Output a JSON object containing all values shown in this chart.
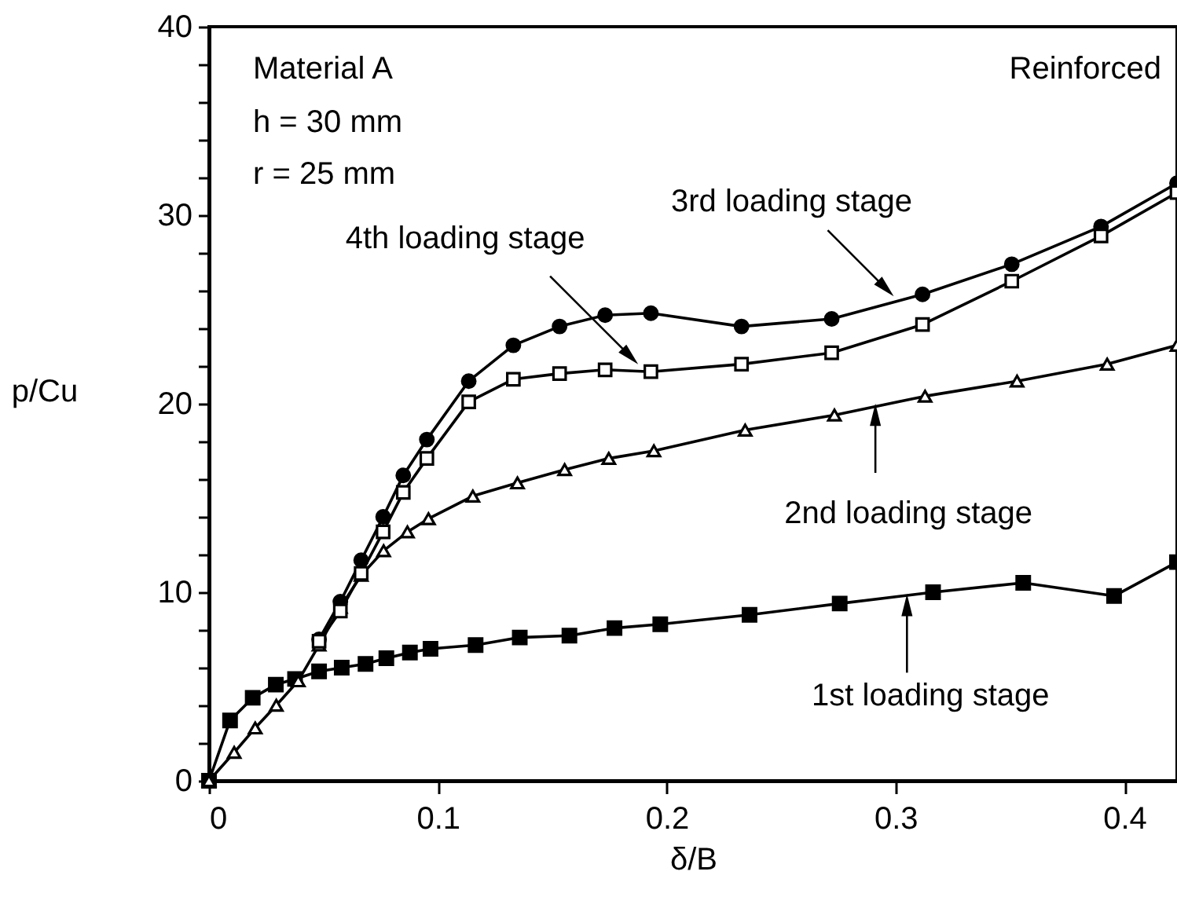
{
  "chart_data": {
    "type": "line",
    "xlabel": "δ/B",
    "ylabel": "p/Cu",
    "xlim": [
      0,
      0.423
    ],
    "ylim": [
      0,
      40
    ],
    "xticks": [
      {
        "value": 0,
        "label": "0"
      },
      {
        "value": 0.1,
        "label": "0.1"
      },
      {
        "value": 0.2,
        "label": "0.2"
      },
      {
        "value": 0.3,
        "label": "0.3"
      },
      {
        "value": 0.4,
        "label": "0.4"
      }
    ],
    "yticks": [
      0,
      {
        "value": 2,
        "label": null
      },
      {
        "value": 4,
        "label": null
      },
      {
        "value": 6,
        "label": null
      },
      {
        "value": 8,
        "label": null
      },
      10,
      {
        "value": 12,
        "label": null
      },
      {
        "value": 14,
        "label": null
      },
      {
        "value": 16,
        "label": null
      },
      {
        "value": 18,
        "label": null
      },
      20,
      {
        "value": 22,
        "label": null
      },
      {
        "value": 24,
        "label": null
      },
      {
        "value": 26,
        "label": null
      },
      {
        "value": 28,
        "label": null
      },
      30,
      {
        "value": 32,
        "label": null
      },
      {
        "value": 34,
        "label": null
      },
      {
        "value": 36,
        "label": null
      },
      {
        "value": 38,
        "label": null
      },
      40
    ],
    "grid": false,
    "line_style": "solid",
    "series": [
      {
        "color": "#000000",
        "marker": "square",
        "x": [
          0,
          0.0092,
          0.0191,
          0.0292,
          0.0376,
          0.0481,
          0.058,
          0.0684,
          0.0775,
          0.0878,
          0.0968,
          0.1165,
          0.1358,
          0.1575,
          0.1772,
          0.1972,
          0.2362,
          0.2756,
          0.3164,
          0.3558,
          0.3955,
          0.423
        ],
        "values": [
          0,
          3.2,
          4.4,
          5.1,
          5.4,
          5.8,
          6.0,
          6.2,
          6.5,
          6.8,
          7.0,
          7.2,
          7.6,
          7.7,
          8.1,
          8.3,
          8.8,
          9.4,
          10.0,
          10.5,
          9.8,
          11.6
        ]
      },
      {
        "color": "#000000",
        "marker": "triangle",
        "x": [
          0,
          0.011,
          0.0202,
          0.0294,
          0.039,
          0.0481,
          0.0574,
          0.0665,
          0.0763,
          0.0867,
          0.0959,
          0.1153,
          0.1348,
          0.1554,
          0.1747,
          0.1944,
          0.2343,
          0.2733,
          0.3129,
          0.3531,
          0.3925,
          0.423
        ],
        "values": [
          0,
          1.5,
          2.8,
          4.0,
          5.3,
          7.2,
          9.2,
          10.9,
          12.2,
          13.2,
          13.9,
          15.1,
          15.8,
          16.5,
          17.1,
          17.5,
          18.6,
          19.4,
          20.4,
          21.2,
          22.1,
          23.1
        ]
      },
      {
        "color": "#000000",
        "marker": "circle",
        "x": [
          0.0481,
          0.0574,
          0.0665,
          0.0761,
          0.0849,
          0.0952,
          0.1135,
          0.133,
          0.1532,
          0.1731,
          0.1931,
          0.2327,
          0.2721,
          0.3118,
          0.3508,
          0.3898,
          0.423
        ],
        "values": [
          7.5,
          9.5,
          11.7,
          14.0,
          16.2,
          18.1,
          21.2,
          23.1,
          24.1,
          24.7,
          24.8,
          24.1,
          24.5,
          25.8,
          27.4,
          29.4,
          31.7
        ]
      },
      {
        "color": "#000000",
        "marker": "square",
        "x": [
          0.0481,
          0.0574,
          0.0665,
          0.0761,
          0.0849,
          0.0952,
          0.1135,
          0.133,
          0.1532,
          0.1731,
          0.1931,
          0.2327,
          0.2721,
          0.3118,
          0.3508,
          0.3898,
          0.423
        ],
        "values": [
          7.4,
          9.0,
          11.0,
          13.2,
          15.3,
          17.1,
          20.1,
          21.3,
          21.6,
          21.8,
          21.7,
          22.1,
          22.7,
          24.2,
          26.5,
          28.9,
          31.2
        ]
      }
    ],
    "annotations": [
      "Material A",
      "h = 30 mm",
      "r = 25 mm",
      "Reinforced",
      {
        "text": "3rd loading stage",
        "x": 0.2992,
        "y": 25.7
      },
      {
        "text": "4th loading stage",
        "x": 0.1875,
        "y": 22.1
      },
      {
        "text": "2nd loading stage",
        "x": 0.2912,
        "y": 20.0
      },
      {
        "text": "1st loading stage",
        "x": 0.305,
        "y": 9.9
      }
    ]
  }
}
